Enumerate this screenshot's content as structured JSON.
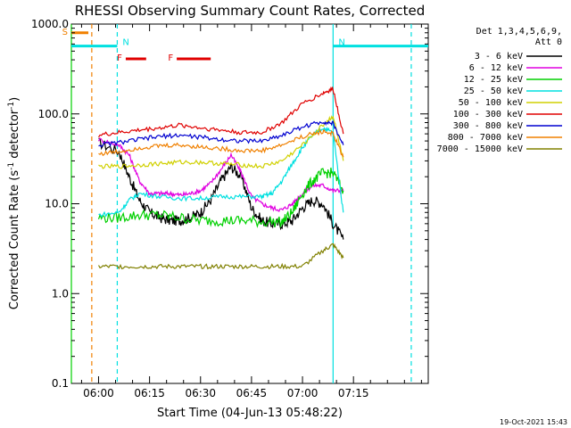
{
  "chart_data": {
    "type": "line",
    "title": "RHESSI Observing Summary Count Rates, Corrected",
    "xlabel": "Start Time (04-Jun-13 05:48:22)",
    "ylabel_main": "Corrected Count Rate (s",
    "ylabel_sup1": "-1",
    "ylabel_mid": " detector",
    "ylabel_sup2": "-1",
    "ylabel_end": ")",
    "y_scale": "log",
    "ylim": [
      0.1,
      1000
    ],
    "xlim_minutes": [
      -8,
      97
    ],
    "y_ticks": [
      {
        "value": 0.1,
        "label": "0.1"
      },
      {
        "value": 1,
        "label": "1.0"
      },
      {
        "value": 10,
        "label": "10.0"
      },
      {
        "value": 100,
        "label": "100.0"
      },
      {
        "value": 1000,
        "label": "1000.0"
      }
    ],
    "x_ticks": [
      {
        "minute": 0,
        "label": "06:00"
      },
      {
        "minute": 15,
        "label": "06:15"
      },
      {
        "minute": 30,
        "label": "06:30"
      },
      {
        "minute": 45,
        "label": "06:45"
      },
      {
        "minute": 60,
        "label": "07:00"
      },
      {
        "minute": 75,
        "label": "07:15"
      }
    ],
    "legend_header": [
      "Det 1,3,4,5,6,9,",
      "Att 0"
    ],
    "legend_placement": "right",
    "series": [
      {
        "name": "3 - 6 keV",
        "color": "#000000",
        "x": [
          0,
          6,
          9,
          12,
          15,
          18,
          21,
          24,
          27,
          30,
          33,
          36,
          39,
          42,
          45,
          48,
          51,
          54,
          57,
          60,
          63,
          66,
          69,
          72
        ],
        "y": [
          48,
          38,
          20,
          11,
          8,
          7,
          6.5,
          6.5,
          7,
          8,
          11,
          18,
          26,
          20,
          9,
          6.5,
          6,
          6,
          6.5,
          9,
          11,
          10,
          6,
          4
        ]
      },
      {
        "name": "6 - 12 keV",
        "color": "#e000e0",
        "x": [
          0,
          6,
          9,
          12,
          15,
          18,
          21,
          24,
          27,
          30,
          33,
          36,
          39,
          42,
          45,
          48,
          51,
          54,
          57,
          60,
          63,
          66,
          69,
          72
        ],
        "y": [
          52,
          45,
          35,
          18,
          13,
          13,
          13,
          12.5,
          13,
          14,
          17,
          24,
          35,
          22,
          12,
          10,
          9,
          8.5,
          10,
          13,
          16,
          16,
          14,
          14
        ]
      },
      {
        "name": "12 - 25 keV",
        "color": "#00d000",
        "x": [
          0,
          6,
          12,
          18,
          24,
          30,
          36,
          42,
          48,
          54,
          57,
          60,
          63,
          66,
          69,
          72
        ],
        "y": [
          7,
          7,
          7.5,
          7.5,
          7,
          6.5,
          6.5,
          6.5,
          6.3,
          6.3,
          8,
          13,
          18,
          22,
          22,
          14
        ]
      },
      {
        "name": "25 - 50 keV",
        "color": "#00e0e0",
        "x": [
          0,
          6,
          9,
          12,
          18,
          24,
          30,
          36,
          42,
          48,
          51,
          54,
          57,
          60,
          63,
          66,
          69,
          72
        ],
        "y": [
          7.5,
          8,
          11,
          13,
          12,
          11.5,
          11.5,
          12,
          12,
          12,
          13,
          18,
          28,
          42,
          58,
          70,
          62,
          8
        ]
      },
      {
        "name": "50 - 100 keV",
        "color": "#d0d000",
        "x": [
          0,
          6,
          12,
          18,
          24,
          30,
          36,
          42,
          48,
          54,
          60,
          66,
          69,
          72
        ],
        "y": [
          26,
          26,
          27,
          28,
          29,
          29,
          28,
          27,
          26,
          30,
          45,
          75,
          95,
          30
        ]
      },
      {
        "name": "100 - 300 keV",
        "color": "#e00000",
        "x": [
          0,
          6,
          12,
          18,
          24,
          30,
          36,
          42,
          48,
          54,
          60,
          66,
          69,
          72
        ],
        "y": [
          58,
          62,
          66,
          70,
          75,
          70,
          66,
          62,
          62,
          80,
          130,
          170,
          190,
          60
        ]
      },
      {
        "name": "300 - 800 keV",
        "color": "#0000d0",
        "x": [
          0,
          6,
          12,
          18,
          24,
          30,
          36,
          42,
          48,
          54,
          60,
          66,
          69,
          72
        ],
        "y": [
          45,
          48,
          52,
          56,
          58,
          55,
          52,
          50,
          50,
          58,
          72,
          82,
          78,
          45
        ]
      },
      {
        "name": "800 - 7000 keV",
        "color": "#f08000",
        "x": [
          0,
          6,
          12,
          18,
          24,
          30,
          36,
          42,
          48,
          54,
          60,
          66,
          69,
          72
        ],
        "y": [
          36,
          38,
          42,
          44,
          45,
          43,
          41,
          39,
          39,
          45,
          56,
          64,
          60,
          33
        ]
      },
      {
        "name": "7000 - 15000 keV",
        "color": "#808000",
        "x": [
          0,
          6,
          12,
          18,
          24,
          30,
          36,
          42,
          48,
          54,
          60,
          66,
          69,
          72
        ],
        "y": [
          2,
          2,
          2,
          2,
          2,
          2,
          2,
          2,
          2,
          2,
          2,
          3,
          3.5,
          2.5
        ]
      }
    ],
    "state_bars": [
      {
        "label": "S",
        "color": "#f08000",
        "x_start": -8,
        "x_end": -3,
        "y": 800
      },
      {
        "label": "N",
        "color": "#00e0e0",
        "x_start": -8,
        "x_end": 5.5,
        "y": 570
      },
      {
        "label": "N",
        "color": "#00e0e0",
        "x_start": 69,
        "x_end": 97,
        "y": 570
      },
      {
        "label": "F",
        "color": "#e00000",
        "x_start": 8,
        "x_end": 14,
        "y": 410
      },
      {
        "label": "F",
        "color": "#e00000",
        "x_start": 23,
        "x_end": 33,
        "y": 410
      }
    ],
    "vlines": [
      {
        "minute": -8,
        "color": "#00d000",
        "style": "solid"
      },
      {
        "minute": -2,
        "color": "#f08000",
        "style": "dashed"
      },
      {
        "minute": 5.5,
        "color": "#00e0e0",
        "style": "dashed"
      },
      {
        "minute": 69,
        "color": "#00e0e0",
        "style": "solid"
      },
      {
        "minute": 92,
        "color": "#00e0e0",
        "style": "dashed"
      }
    ],
    "timestamp": "19-Oct-2021 15:43"
  }
}
